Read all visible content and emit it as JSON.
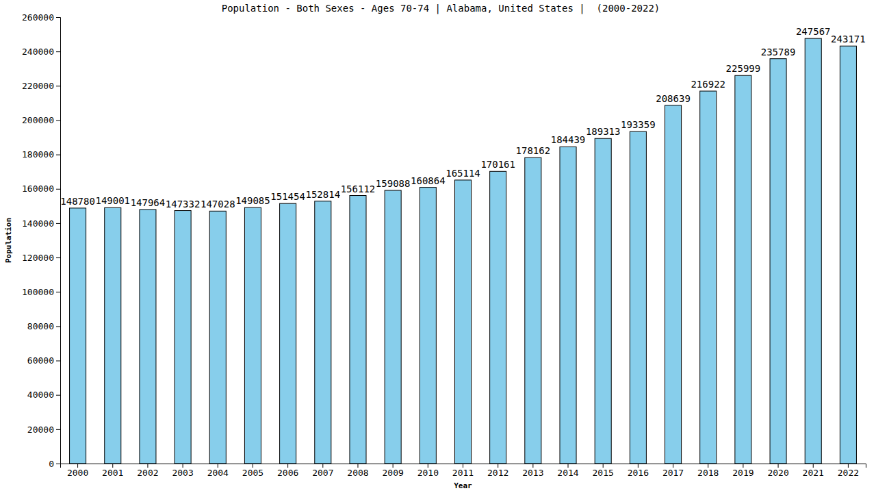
{
  "chart_data": {
    "type": "bar",
    "title": "Population - Both Sexes - Ages 70-74 | Alabama, United States |  (2000-2022)",
    "x_label": "Year",
    "y_label": "Population",
    "categories": [
      "2000",
      "2001",
      "2002",
      "2003",
      "2004",
      "2005",
      "2006",
      "2007",
      "2008",
      "2009",
      "2010",
      "2011",
      "2012",
      "2013",
      "2014",
      "2015",
      "2016",
      "2017",
      "2018",
      "2019",
      "2020",
      "2021",
      "2022"
    ],
    "values": [
      148780,
      149001,
      147964,
      147332,
      147028,
      149085,
      151454,
      152814,
      156112,
      159088,
      160864,
      165114,
      170161,
      178162,
      184439,
      189313,
      193359,
      208639,
      216922,
      225999,
      235789,
      247567,
      243171
    ],
    "color": "#87ceeb",
    "ylim": [
      0,
      260000
    ],
    "yticks": [
      0,
      20000,
      40000,
      60000,
      80000,
      100000,
      120000,
      140000,
      160000,
      180000,
      200000,
      220000,
      240000,
      260000
    ],
    "grid": false,
    "data_labels": true
  }
}
